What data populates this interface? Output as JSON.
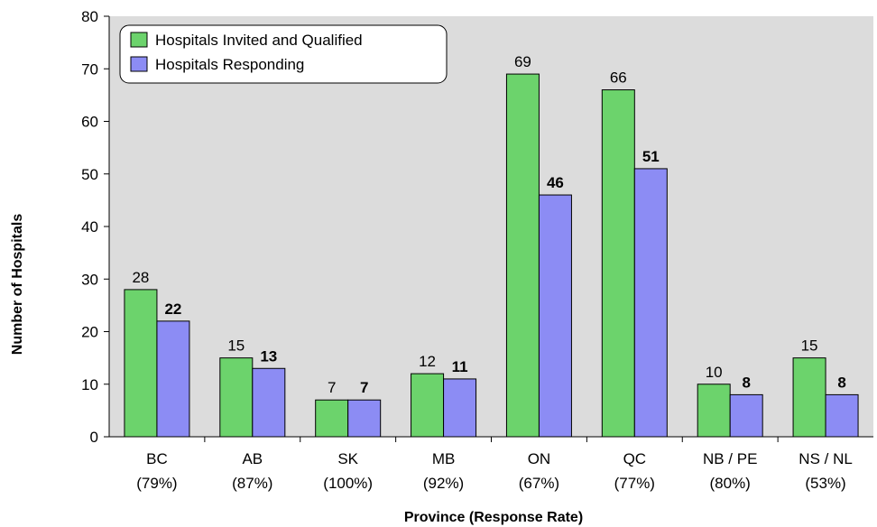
{
  "chart_data": {
    "type": "bar",
    "categories": [
      "BC",
      "AB",
      "SK",
      "MB",
      "ON",
      "QC",
      "NB / PE",
      "NS / NL"
    ],
    "category_sublabels": [
      "(79%)",
      "(87%)",
      "(100%)",
      "(92%)",
      "(67%)",
      "(77%)",
      "(80%)",
      "(53%)"
    ],
    "series": [
      {
        "name": "Hospitals Invited and Qualified",
        "values": [
          28,
          15,
          7,
          12,
          69,
          66,
          10,
          15
        ],
        "color": "#6cd36c",
        "label_weight": "normal"
      },
      {
        "name": "Hospitals Responding",
        "values": [
          22,
          13,
          7,
          11,
          46,
          51,
          8,
          8
        ],
        "color": "#8c8cf4",
        "label_weight": "bold"
      }
    ],
    "xlabel": "Province (Response Rate)",
    "ylabel": "Number of Hospitals",
    "ylim": [
      0,
      80
    ],
    "yticks": [
      0,
      10,
      20,
      30,
      40,
      50,
      60,
      70,
      80
    ],
    "plot_background": "#dcdcdc",
    "grid": false,
    "legend_position": "top-left"
  }
}
